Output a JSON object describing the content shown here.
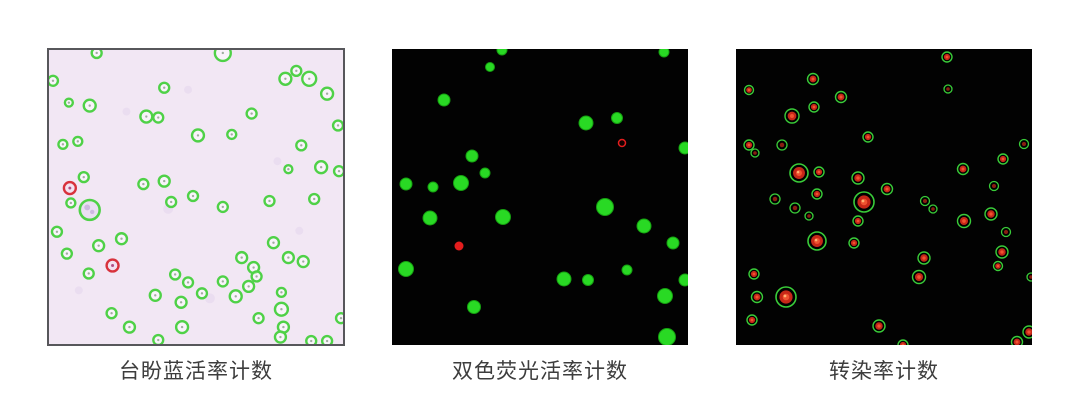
{
  "figure": {
    "background": "#ffffff",
    "caption_color": "#3d3d3d"
  },
  "panels": [
    {
      "id": "trypan-blue",
      "caption": "台盼蓝活率计数",
      "background": "#f2e7f4",
      "border_color": "#57575b",
      "palette": {
        "live": "#4fd147",
        "dead": "#d8323c",
        "dot": "#9fae9f",
        "deaddot": "#b04f85",
        "largefill": "#eadff2",
        "blobdark": "#cdb9e0",
        "blob": "#e3d5ec"
      },
      "blobs": [
        [
          120,
          160,
          5
        ],
        [
          230,
          112,
          4
        ],
        [
          78,
          62,
          4
        ],
        [
          162,
          250,
          5
        ],
        [
          252,
          182,
          4
        ],
        [
          30,
          242,
          4
        ],
        [
          140,
          40,
          4
        ]
      ],
      "cells": [
        [
          48,
          3,
          5,
          "L"
        ],
        [
          4,
          31,
          5,
          "L"
        ],
        [
          20,
          53,
          4,
          "L"
        ],
        [
          41,
          56,
          6,
          "L"
        ],
        [
          116,
          38,
          5,
          "L"
        ],
        [
          98,
          67,
          6,
          "L"
        ],
        [
          110,
          68,
          5,
          "L"
        ],
        [
          14,
          95,
          4.5,
          "L"
        ],
        [
          29,
          92,
          4.5,
          "L"
        ],
        [
          150,
          86,
          6,
          "L"
        ],
        [
          35,
          128,
          5,
          "L"
        ],
        [
          21,
          139,
          6,
          "D"
        ],
        [
          95,
          135,
          5,
          "L"
        ],
        [
          116,
          132,
          5.5,
          "L"
        ],
        [
          175,
          3,
          8,
          "L"
        ],
        [
          238,
          29,
          6,
          "L"
        ],
        [
          249,
          21,
          5,
          "L"
        ],
        [
          262,
          29,
          7,
          "L"
        ],
        [
          280,
          44,
          6,
          "L"
        ],
        [
          204,
          64,
          5,
          "L"
        ],
        [
          184,
          85,
          4.5,
          "L"
        ],
        [
          291,
          76,
          5,
          "L"
        ],
        [
          254,
          96,
          5,
          "L"
        ],
        [
          241,
          120,
          4,
          "L"
        ],
        [
          274,
          118,
          6,
          "L"
        ],
        [
          292,
          122,
          5,
          "L"
        ],
        [
          22,
          154,
          4.5,
          "L"
        ],
        [
          41,
          161,
          10,
          "G"
        ],
        [
          8,
          183,
          5,
          "L"
        ],
        [
          18,
          205,
          5,
          "L"
        ],
        [
          50,
          197,
          5.5,
          "L"
        ],
        [
          73,
          190,
          5.5,
          "L"
        ],
        [
          64,
          217,
          6,
          "D"
        ],
        [
          40,
          225,
          5,
          "L"
        ],
        [
          123,
          153,
          5,
          "L"
        ],
        [
          145,
          147,
          5,
          "L"
        ],
        [
          127,
          226,
          5,
          "L"
        ],
        [
          140,
          234,
          5,
          "L"
        ],
        [
          107,
          247,
          5.5,
          "L"
        ],
        [
          133,
          254,
          5.5,
          "L"
        ],
        [
          63,
          265,
          5,
          "L"
        ],
        [
          81,
          279,
          5.5,
          "L"
        ],
        [
          134,
          279,
          6,
          "L"
        ],
        [
          110,
          292,
          5,
          "L"
        ],
        [
          175,
          158,
          5,
          "L"
        ],
        [
          222,
          152,
          5,
          "L"
        ],
        [
          267,
          150,
          5,
          "L"
        ],
        [
          226,
          194,
          5.5,
          "L"
        ],
        [
          194,
          209,
          5.5,
          "L"
        ],
        [
          241,
          209,
          5.5,
          "L"
        ],
        [
          256,
          213,
          5.5,
          "L"
        ],
        [
          206,
          219,
          5.5,
          "L"
        ],
        [
          209,
          228,
          5,
          "L"
        ],
        [
          175,
          233,
          5,
          "L"
        ],
        [
          201,
          238,
          5.5,
          "L"
        ],
        [
          154,
          245,
          5,
          "L"
        ],
        [
          188,
          248,
          6,
          "L"
        ],
        [
          234,
          244,
          4.5,
          "L"
        ],
        [
          234,
          261,
          6.5,
          "L"
        ],
        [
          211,
          270,
          5,
          "L"
        ],
        [
          236,
          279,
          5.5,
          "L"
        ],
        [
          233,
          289,
          5.5,
          "L"
        ],
        [
          264,
          293,
          5,
          "L"
        ],
        [
          280,
          293,
          5,
          "L"
        ],
        [
          294,
          270,
          5,
          "L"
        ]
      ]
    },
    {
      "id": "dual-fluorescence",
      "caption": "双色荧光活率计数",
      "background": "#020202",
      "palette": {
        "live": "#29d924",
        "liveedge": "#16a011",
        "dead": "#e31d1d"
      },
      "blobs": [],
      "cells": [
        [
          110,
          1,
          5,
          "V"
        ],
        [
          98,
          18,
          4.5,
          "V"
        ],
        [
          272,
          3,
          5,
          "V"
        ],
        [
          52,
          51,
          6,
          "V"
        ],
        [
          194,
          74,
          7,
          "V"
        ],
        [
          225,
          69,
          5.5,
          "V"
        ],
        [
          230,
          94,
          3.5,
          "O"
        ],
        [
          293,
          99,
          6,
          "V"
        ],
        [
          80,
          107,
          6,
          "V"
        ],
        [
          93,
          124,
          5,
          "V"
        ],
        [
          14,
          135,
          6,
          "V"
        ],
        [
          69,
          134,
          7.5,
          "V"
        ],
        [
          41,
          138,
          5,
          "V"
        ],
        [
          213,
          158,
          8.5,
          "V"
        ],
        [
          38,
          169,
          7,
          "V"
        ],
        [
          111,
          168,
          7.5,
          "V"
        ],
        [
          252,
          177,
          7,
          "V"
        ],
        [
          67,
          197,
          4.5,
          "X"
        ],
        [
          281,
          194,
          6,
          "V"
        ],
        [
          14,
          220,
          7.5,
          "V"
        ],
        [
          172,
          230,
          7,
          "V"
        ],
        [
          196,
          231,
          5.5,
          "V"
        ],
        [
          235,
          221,
          5,
          "V"
        ],
        [
          293,
          231,
          6,
          "V"
        ],
        [
          273,
          247,
          7.5,
          "V"
        ],
        [
          82,
          258,
          6.5,
          "V"
        ],
        [
          275,
          288,
          8.5,
          "V"
        ]
      ]
    },
    {
      "id": "transfection",
      "caption": "转染率计数",
      "background": "#020202",
      "palette": {
        "ring": "#39cc39",
        "center": "#c62718",
        "core": "#ef5230",
        "centerdim": "#8a1d11",
        "corehi": "#ffb070"
      },
      "blobs": [],
      "cells": [
        [
          211,
          8,
          5,
          "S"
        ],
        [
          77,
          30,
          5.5,
          "S"
        ],
        [
          13,
          41,
          4.5,
          "S"
        ],
        [
          212,
          40,
          4,
          "W"
        ],
        [
          105,
          48,
          5.5,
          "S"
        ],
        [
          78,
          58,
          5,
          "S"
        ],
        [
          56,
          67,
          7,
          "S"
        ],
        [
          13,
          96,
          5,
          "S"
        ],
        [
          19,
          104,
          4,
          "W"
        ],
        [
          46,
          96,
          5,
          "W"
        ],
        [
          132,
          88,
          5,
          "S"
        ],
        [
          288,
          95,
          4.5,
          "W"
        ],
        [
          267,
          110,
          5,
          "S"
        ],
        [
          63,
          124,
          9,
          "B"
        ],
        [
          83,
          123,
          5,
          "S"
        ],
        [
          227,
          120,
          5.5,
          "S"
        ],
        [
          122,
          129,
          6,
          "S"
        ],
        [
          258,
          137,
          4.5,
          "W"
        ],
        [
          151,
          140,
          5.5,
          "S"
        ],
        [
          81,
          145,
          5,
          "S"
        ],
        [
          39,
          150,
          5,
          "W"
        ],
        [
          189,
          152,
          4.5,
          "W"
        ],
        [
          197,
          160,
          4,
          "W"
        ],
        [
          128,
          153,
          10,
          "B"
        ],
        [
          73,
          167,
          4,
          "W"
        ],
        [
          59,
          159,
          5,
          "W"
        ],
        [
          255,
          165,
          6,
          "S"
        ],
        [
          228,
          172,
          6.5,
          "S"
        ],
        [
          122,
          172,
          5,
          "S"
        ],
        [
          270,
          183,
          4.5,
          "W"
        ],
        [
          81,
          192,
          9,
          "B"
        ],
        [
          118,
          194,
          5,
          "S"
        ],
        [
          188,
          209,
          6,
          "S"
        ],
        [
          266,
          203,
          6,
          "S"
        ],
        [
          262,
          217,
          4.5,
          "S"
        ],
        [
          183,
          228,
          6.5,
          "S"
        ],
        [
          18,
          225,
          5,
          "S"
        ],
        [
          21,
          248,
          5.5,
          "S"
        ],
        [
          50,
          248,
          10,
          "B"
        ],
        [
          295,
          228,
          4,
          "W"
        ],
        [
          16,
          271,
          5,
          "S"
        ],
        [
          143,
          277,
          6,
          "S"
        ],
        [
          293,
          283,
          6,
          "S"
        ],
        [
          281,
          293,
          5.5,
          "S"
        ],
        [
          167,
          296,
          5,
          "S"
        ]
      ]
    }
  ]
}
